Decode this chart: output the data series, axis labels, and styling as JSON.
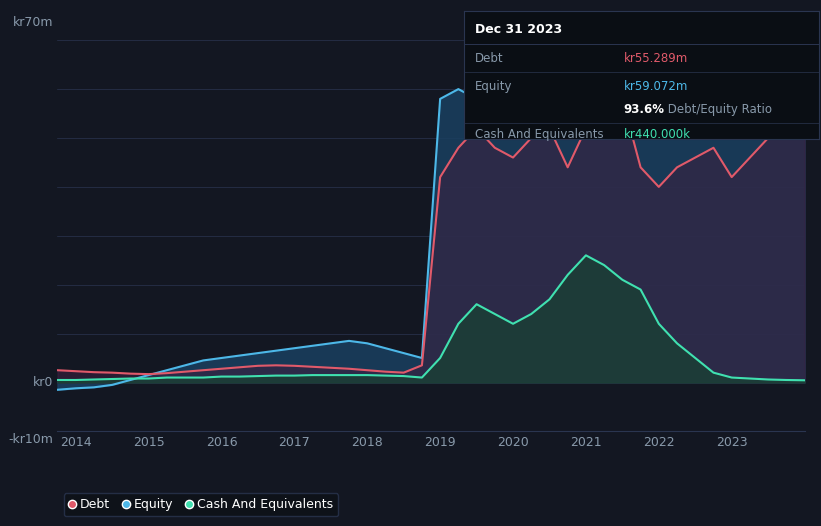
{
  "bg_color": "#131722",
  "plot_bg_color": "#131722",
  "grid_color": "#1e2535",
  "ylabel_top": "kr70m",
  "ylabel_zero": "kr0",
  "ylabel_neg": "-kr10m",
  "ylim": [
    -10,
    75
  ],
  "xlabel_years": [
    "2014",
    "2015",
    "2016",
    "2017",
    "2018",
    "2019",
    "2020",
    "2021",
    "2022",
    "2023"
  ],
  "debt_color": "#e05a6a",
  "equity_color": "#4db8e8",
  "cash_color": "#40e0b0",
  "equity_fill_color": "#1a4060",
  "debt_fill_color": "#3a2040",
  "cash_fill_color": "#1a4035",
  "info_box": {
    "title": "Dec 31 2023",
    "debt_label": "Debt",
    "debt_value": "kr55.289m",
    "equity_label": "Equity",
    "equity_value": "kr59.072m",
    "ratio_highlight": "93.6%",
    "ratio_rest": " Debt/Equity Ratio",
    "cash_label": "Cash And Equivalents",
    "cash_value": "kr440.000k"
  },
  "x": [
    2013.75,
    2014.0,
    2014.25,
    2014.5,
    2014.75,
    2015.0,
    2015.25,
    2015.5,
    2015.75,
    2016.0,
    2016.25,
    2016.5,
    2016.75,
    2017.0,
    2017.25,
    2017.5,
    2017.75,
    2018.0,
    2018.25,
    2018.5,
    2018.75,
    2019.0,
    2019.25,
    2019.5,
    2019.75,
    2020.0,
    2020.25,
    2020.5,
    2020.75,
    2021.0,
    2021.25,
    2021.5,
    2021.75,
    2022.0,
    2022.25,
    2022.5,
    2022.75,
    2023.0,
    2023.25,
    2023.5,
    2023.75,
    2024.0
  ],
  "debt": [
    2.5,
    2.3,
    2.1,
    2.0,
    1.8,
    1.7,
    1.9,
    2.2,
    2.5,
    2.8,
    3.1,
    3.4,
    3.5,
    3.4,
    3.2,
    3.0,
    2.8,
    2.5,
    2.2,
    2.0,
    3.5,
    42.0,
    48.0,
    52.0,
    48.0,
    46.0,
    50.0,
    52.0,
    44.0,
    52.0,
    56.0,
    58.0,
    44.0,
    40.0,
    44.0,
    46.0,
    48.0,
    42.0,
    46.0,
    50.0,
    55.0,
    55.289
  ],
  "equity": [
    -1.5,
    -1.2,
    -1.0,
    -0.5,
    0.5,
    1.5,
    2.5,
    3.5,
    4.5,
    5.0,
    5.5,
    6.0,
    6.5,
    7.0,
    7.5,
    8.0,
    8.5,
    8.0,
    7.0,
    6.0,
    5.0,
    58.0,
    60.0,
    58.0,
    56.0,
    54.0,
    56.0,
    58.0,
    60.0,
    62.0,
    65.0,
    68.0,
    62.0,
    58.0,
    56.0,
    54.0,
    52.0,
    56.0,
    55.0,
    57.0,
    59.0,
    59.072
  ],
  "cash": [
    0.5,
    0.5,
    0.6,
    0.7,
    0.8,
    0.8,
    1.0,
    1.0,
    1.0,
    1.2,
    1.2,
    1.3,
    1.4,
    1.4,
    1.5,
    1.5,
    1.5,
    1.5,
    1.4,
    1.3,
    1.0,
    5.0,
    12.0,
    16.0,
    14.0,
    12.0,
    14.0,
    17.0,
    22.0,
    26.0,
    24.0,
    21.0,
    19.0,
    12.0,
    8.0,
    5.0,
    2.0,
    1.0,
    0.8,
    0.6,
    0.5,
    0.44
  ]
}
